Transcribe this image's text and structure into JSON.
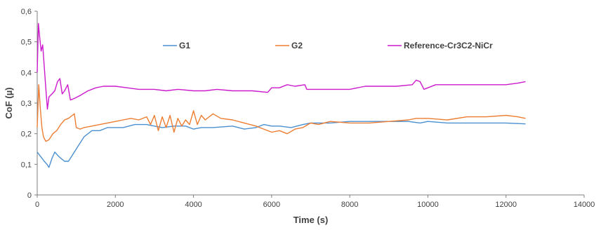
{
  "chart_data": {
    "type": "line",
    "xlabel": "Time (s)",
    "ylabel": "CoF (µ)",
    "xlim": [
      0,
      14000
    ],
    "ylim": [
      0,
      0.6
    ],
    "xticks": [
      0,
      2000,
      4000,
      6000,
      8000,
      10000,
      12000,
      14000
    ],
    "xtick_labels": [
      "0",
      "2000",
      "4000",
      "6000",
      "8000",
      "10000",
      "12000",
      "14000"
    ],
    "yticks": [
      0,
      0.1,
      0.2,
      0.3,
      0.4,
      0.5,
      0.6
    ],
    "ytick_labels": [
      "0",
      "0,1",
      "0,2",
      "0,3",
      "0,4",
      "0,5",
      "0,6"
    ],
    "grid": false,
    "legend_position": "top",
    "series": [
      {
        "name": "G1",
        "color": "#4a8fd0",
        "points": [
          [
            0,
            0.14
          ],
          [
            60,
            0.13
          ],
          [
            120,
            0.12
          ],
          [
            180,
            0.11
          ],
          [
            250,
            0.1
          ],
          [
            300,
            0.09
          ],
          [
            380,
            0.12
          ],
          [
            450,
            0.14
          ],
          [
            520,
            0.13
          ],
          [
            600,
            0.12
          ],
          [
            700,
            0.11
          ],
          [
            800,
            0.11
          ],
          [
            900,
            0.13
          ],
          [
            1000,
            0.15
          ],
          [
            1100,
            0.17
          ],
          [
            1200,
            0.19
          ],
          [
            1300,
            0.2
          ],
          [
            1400,
            0.21
          ],
          [
            1600,
            0.21
          ],
          [
            1800,
            0.22
          ],
          [
            2000,
            0.22
          ],
          [
            2200,
            0.22
          ],
          [
            2500,
            0.23
          ],
          [
            2800,
            0.23
          ],
          [
            3000,
            0.225
          ],
          [
            3200,
            0.22
          ],
          [
            3500,
            0.225
          ],
          [
            3800,
            0.225
          ],
          [
            4000,
            0.215
          ],
          [
            4200,
            0.22
          ],
          [
            4500,
            0.22
          ],
          [
            5000,
            0.225
          ],
          [
            5300,
            0.215
          ],
          [
            5600,
            0.22
          ],
          [
            5800,
            0.23
          ],
          [
            6000,
            0.225
          ],
          [
            6200,
            0.225
          ],
          [
            6500,
            0.22
          ],
          [
            6800,
            0.23
          ],
          [
            7000,
            0.235
          ],
          [
            7500,
            0.235
          ],
          [
            8000,
            0.24
          ],
          [
            8500,
            0.24
          ],
          [
            9000,
            0.24
          ],
          [
            9500,
            0.24
          ],
          [
            9800,
            0.235
          ],
          [
            10000,
            0.24
          ],
          [
            10500,
            0.235
          ],
          [
            11000,
            0.235
          ],
          [
            11500,
            0.235
          ],
          [
            12000,
            0.235
          ],
          [
            12500,
            0.232
          ]
        ]
      },
      {
        "name": "G2",
        "color": "#ed7d31",
        "points": [
          [
            0,
            0.22
          ],
          [
            40,
            0.36
          ],
          [
            80,
            0.28
          ],
          [
            120,
            0.22
          ],
          [
            160,
            0.19
          ],
          [
            220,
            0.175
          ],
          [
            300,
            0.18
          ],
          [
            400,
            0.2
          ],
          [
            500,
            0.21
          ],
          [
            600,
            0.23
          ],
          [
            700,
            0.245
          ],
          [
            800,
            0.25
          ],
          [
            900,
            0.26
          ],
          [
            950,
            0.265
          ],
          [
            1000,
            0.22
          ],
          [
            1100,
            0.215
          ],
          [
            1200,
            0.22
          ],
          [
            1400,
            0.225
          ],
          [
            1600,
            0.23
          ],
          [
            1800,
            0.235
          ],
          [
            2000,
            0.24
          ],
          [
            2200,
            0.245
          ],
          [
            2400,
            0.25
          ],
          [
            2600,
            0.245
          ],
          [
            2800,
            0.255
          ],
          [
            2900,
            0.23
          ],
          [
            3000,
            0.26
          ],
          [
            3100,
            0.21
          ],
          [
            3200,
            0.255
          ],
          [
            3300,
            0.22
          ],
          [
            3400,
            0.26
          ],
          [
            3500,
            0.205
          ],
          [
            3600,
            0.25
          ],
          [
            3700,
            0.225
          ],
          [
            3800,
            0.245
          ],
          [
            3900,
            0.23
          ],
          [
            4000,
            0.275
          ],
          [
            4100,
            0.23
          ],
          [
            4200,
            0.26
          ],
          [
            4300,
            0.245
          ],
          [
            4500,
            0.265
          ],
          [
            4700,
            0.25
          ],
          [
            5000,
            0.245
          ],
          [
            5300,
            0.235
          ],
          [
            5600,
            0.225
          ],
          [
            5800,
            0.215
          ],
          [
            6000,
            0.205
          ],
          [
            6200,
            0.21
          ],
          [
            6400,
            0.2
          ],
          [
            6600,
            0.215
          ],
          [
            6800,
            0.22
          ],
          [
            7000,
            0.235
          ],
          [
            7200,
            0.23
          ],
          [
            7500,
            0.24
          ],
          [
            8000,
            0.235
          ],
          [
            8500,
            0.235
          ],
          [
            9000,
            0.24
          ],
          [
            9500,
            0.245
          ],
          [
            9700,
            0.25
          ],
          [
            10000,
            0.25
          ],
          [
            10500,
            0.245
          ],
          [
            11000,
            0.255
          ],
          [
            11500,
            0.255
          ],
          [
            12000,
            0.26
          ],
          [
            12300,
            0.255
          ],
          [
            12500,
            0.25
          ]
        ]
      },
      {
        "name": "Reference-Cr3C2-NiCr",
        "color": "#cc1acc",
        "points": [
          [
            0,
            0.4
          ],
          [
            30,
            0.56
          ],
          [
            60,
            0.52
          ],
          [
            100,
            0.47
          ],
          [
            140,
            0.49
          ],
          [
            180,
            0.42
          ],
          [
            220,
            0.35
          ],
          [
            260,
            0.28
          ],
          [
            300,
            0.32
          ],
          [
            380,
            0.33
          ],
          [
            450,
            0.34
          ],
          [
            520,
            0.37
          ],
          [
            580,
            0.38
          ],
          [
            640,
            0.33
          ],
          [
            700,
            0.34
          ],
          [
            780,
            0.36
          ],
          [
            850,
            0.31
          ],
          [
            950,
            0.315
          ],
          [
            1100,
            0.325
          ],
          [
            1300,
            0.34
          ],
          [
            1500,
            0.35
          ],
          [
            1700,
            0.355
          ],
          [
            2000,
            0.355
          ],
          [
            2300,
            0.35
          ],
          [
            2600,
            0.345
          ],
          [
            3000,
            0.345
          ],
          [
            3300,
            0.34
          ],
          [
            3600,
            0.345
          ],
          [
            4000,
            0.34
          ],
          [
            4300,
            0.34
          ],
          [
            4600,
            0.345
          ],
          [
            5000,
            0.34
          ],
          [
            5500,
            0.34
          ],
          [
            5900,
            0.335
          ],
          [
            6000,
            0.35
          ],
          [
            6200,
            0.35
          ],
          [
            6400,
            0.36
          ],
          [
            6600,
            0.355
          ],
          [
            6850,
            0.36
          ],
          [
            6900,
            0.345
          ],
          [
            7200,
            0.345
          ],
          [
            7600,
            0.345
          ],
          [
            8000,
            0.345
          ],
          [
            8400,
            0.355
          ],
          [
            8800,
            0.355
          ],
          [
            9200,
            0.355
          ],
          [
            9600,
            0.36
          ],
          [
            9700,
            0.375
          ],
          [
            9800,
            0.37
          ],
          [
            9900,
            0.345
          ],
          [
            10000,
            0.35
          ],
          [
            10200,
            0.36
          ],
          [
            10500,
            0.36
          ],
          [
            11000,
            0.36
          ],
          [
            11500,
            0.36
          ],
          [
            12000,
            0.36
          ],
          [
            12300,
            0.365
          ],
          [
            12500,
            0.37
          ]
        ]
      }
    ]
  }
}
